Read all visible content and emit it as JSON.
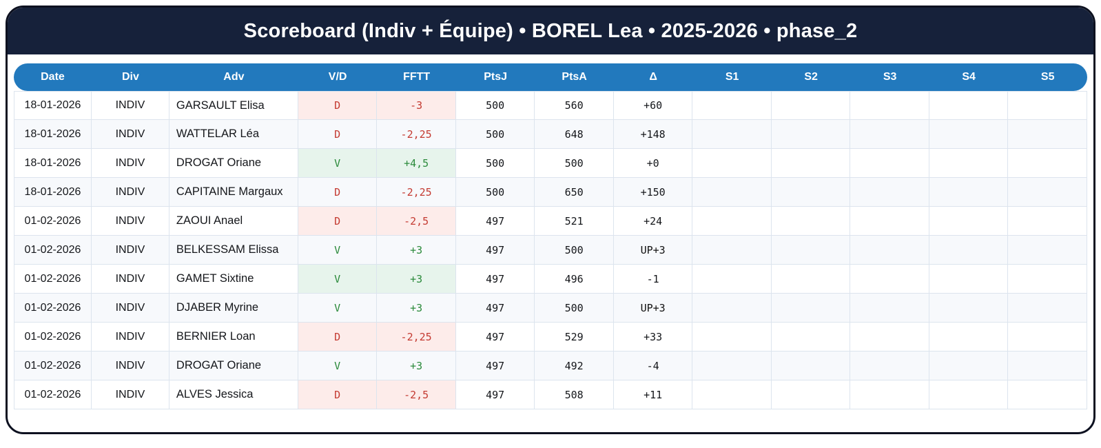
{
  "title": "Scoreboard (Indiv + Équipe) • BOREL Lea • 2025-2026 • phase_2",
  "colors": {
    "frame": "#0d1120",
    "navy": "#16213a",
    "blue": "#2279bd",
    "grid": "#dce4ee",
    "altrow": "#f7f9fc",
    "winbg": "#e7f4ec",
    "wintext": "#2b8a3b",
    "lossbg": "#fdecea",
    "losstext": "#c43a31",
    "purple": "#c0abdd"
  },
  "table": {
    "columns": [
      {
        "key": "date",
        "label": "Date"
      },
      {
        "key": "div",
        "label": "Div"
      },
      {
        "key": "adv",
        "label": "Adv"
      },
      {
        "key": "vd",
        "label": "V/D"
      },
      {
        "key": "fftt",
        "label": "FFTT"
      },
      {
        "key": "ptsj",
        "label": "PtsJ"
      },
      {
        "key": "ptsa",
        "label": "PtsA"
      },
      {
        "key": "delta",
        "label": "Δ"
      },
      {
        "key": "s1",
        "label": "S1"
      },
      {
        "key": "s2",
        "label": "S2"
      },
      {
        "key": "s3",
        "label": "S3"
      },
      {
        "key": "s4",
        "label": "S4"
      },
      {
        "key": "s5",
        "label": "S5"
      }
    ],
    "rows": [
      {
        "date": "18-01-2026",
        "div": "INDIV",
        "adv": "GARSAULT Elisa",
        "vd": "D",
        "fftt": "-3",
        "ptsj": "500",
        "ptsa": "560",
        "delta": "+60",
        "delta_up": false,
        "s1": "",
        "s2": "",
        "s3": "",
        "s4": "",
        "s5": ""
      },
      {
        "date": "18-01-2026",
        "div": "INDIV",
        "adv": "WATTELAR Léa",
        "vd": "D",
        "fftt": "-2,25",
        "ptsj": "500",
        "ptsa": "648",
        "delta": "+148",
        "delta_up": false,
        "s1": "",
        "s2": "",
        "s3": "",
        "s4": "",
        "s5": ""
      },
      {
        "date": "18-01-2026",
        "div": "INDIV",
        "adv": "DROGAT Oriane",
        "vd": "V",
        "fftt": "+4,5",
        "ptsj": "500",
        "ptsa": "500",
        "delta": "+0",
        "delta_up": false,
        "s1": "",
        "s2": "",
        "s3": "",
        "s4": "",
        "s5": ""
      },
      {
        "date": "18-01-2026",
        "div": "INDIV",
        "adv": "CAPITAINE Margaux",
        "vd": "D",
        "fftt": "-2,25",
        "ptsj": "500",
        "ptsa": "650",
        "delta": "+150",
        "delta_up": false,
        "s1": "",
        "s2": "",
        "s3": "",
        "s4": "",
        "s5": ""
      },
      {
        "date": "01-02-2026",
        "div": "INDIV",
        "adv": "ZAOUI Anael",
        "vd": "D",
        "fftt": "-2,5",
        "ptsj": "497",
        "ptsa": "521",
        "delta": "+24",
        "delta_up": false,
        "s1": "",
        "s2": "",
        "s3": "",
        "s4": "",
        "s5": ""
      },
      {
        "date": "01-02-2026",
        "div": "INDIV",
        "adv": "BELKESSAM Elissa",
        "vd": "V",
        "fftt": "+3",
        "ptsj": "497",
        "ptsa": "500",
        "delta": "UP+3",
        "delta_up": true,
        "s1": "",
        "s2": "",
        "s3": "",
        "s4": "",
        "s5": ""
      },
      {
        "date": "01-02-2026",
        "div": "INDIV",
        "adv": "GAMET Sixtine",
        "vd": "V",
        "fftt": "+3",
        "ptsj": "497",
        "ptsa": "496",
        "delta": "-1",
        "delta_up": false,
        "s1": "",
        "s2": "",
        "s3": "",
        "s4": "",
        "s5": ""
      },
      {
        "date": "01-02-2026",
        "div": "INDIV",
        "adv": "DJABER Myrine",
        "vd": "V",
        "fftt": "+3",
        "ptsj": "497",
        "ptsa": "500",
        "delta": "UP+3",
        "delta_up": true,
        "s1": "",
        "s2": "",
        "s3": "",
        "s4": "",
        "s5": ""
      },
      {
        "date": "01-02-2026",
        "div": "INDIV",
        "adv": "BERNIER Loan",
        "vd": "D",
        "fftt": "-2,25",
        "ptsj": "497",
        "ptsa": "529",
        "delta": "+33",
        "delta_up": false,
        "s1": "",
        "s2": "",
        "s3": "",
        "s4": "",
        "s5": ""
      },
      {
        "date": "01-02-2026",
        "div": "INDIV",
        "adv": "DROGAT Oriane",
        "vd": "V",
        "fftt": "+3",
        "ptsj": "497",
        "ptsa": "492",
        "delta": "-4",
        "delta_up": false,
        "s1": "",
        "s2": "",
        "s3": "",
        "s4": "",
        "s5": ""
      },
      {
        "date": "01-02-2026",
        "div": "INDIV",
        "adv": "ALVES Jessica",
        "vd": "D",
        "fftt": "-2,5",
        "ptsj": "497",
        "ptsa": "508",
        "delta": "+11",
        "delta_up": false,
        "s1": "",
        "s2": "",
        "s3": "",
        "s4": "",
        "s5": ""
      }
    ]
  }
}
